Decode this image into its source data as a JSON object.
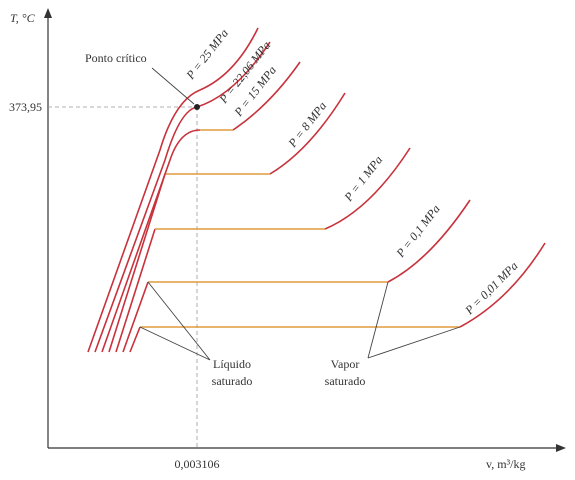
{
  "axis": {
    "y_label": "T, °C",
    "x_label": "v, m³/kg",
    "critical_temperature": "373,95",
    "critical_volume": "0,003106"
  },
  "annotations": {
    "critical_point": "Ponto crítico",
    "saturated_liquid": [
      "Líquido",
      "saturado"
    ],
    "saturated_vapor": [
      "Vapor",
      "saturado"
    ]
  },
  "isobars": [
    "P = 25 MPa",
    "P = 22,06 MPa",
    "P = 15 MPa",
    "P = 8 MPa",
    "P = 1 MPa",
    "P = 0,1 MPa",
    "P = 0,01 MPa"
  ]
}
